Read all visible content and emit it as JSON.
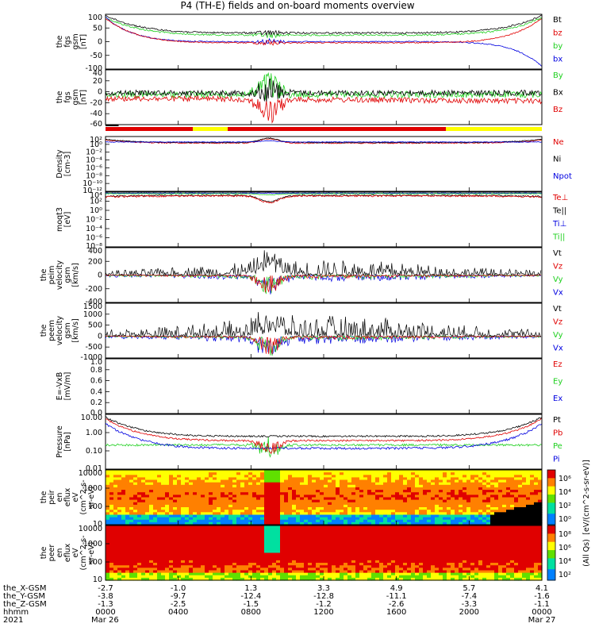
{
  "title": "P4 (TH-E) fields and on-board moments overview",
  "colors": {
    "black": "#000000",
    "red": "#e00000",
    "green": "#20d020",
    "blue": "#0000e0",
    "yellow": "#ffff00"
  },
  "chart_data": [
    {
      "type": "line",
      "ylabel_lines": [
        "the",
        "fgs",
        "gsm",
        "[nT]"
      ],
      "ylim": [
        -100,
        100
      ],
      "ticks": [
        "100",
        "50",
        "0",
        "-50",
        "-100"
      ],
      "series": [
        {
          "name": "Bt",
          "color": "black"
        },
        {
          "name": "bz",
          "color": "red"
        },
        {
          "name": "by",
          "color": "green"
        },
        {
          "name": "bx",
          "color": "blue"
        }
      ]
    },
    {
      "type": "line",
      "ylabel_lines": [
        "the",
        "fgs",
        "gsm",
        "[nT]"
      ],
      "ylim": [
        -70,
        40
      ],
      "ticks": [
        "40",
        "20",
        "0",
        "-20",
        "-40",
        "-60"
      ],
      "series": [
        {
          "name": "By",
          "color": "green"
        },
        {
          "name": "Bx",
          "color": "black"
        },
        {
          "name": "Bz",
          "color": "red"
        }
      ]
    },
    {
      "type": "line",
      "ylabel_lines": [
        "Density",
        "[cm-3]"
      ],
      "scale": "log",
      "ticks": [
        "10²",
        "10⁰",
        "10⁻²",
        "10⁻⁴",
        "10⁻⁶",
        "10⁻⁸",
        "10⁻¹⁰",
        "10⁻¹²"
      ],
      "series": [
        {
          "name": "Ne",
          "color": "red"
        },
        {
          "name": "Ni",
          "color": "black"
        },
        {
          "name": "Npot",
          "color": "blue"
        }
      ]
    },
    {
      "type": "line",
      "ylabel_lines": [
        "moqt3",
        "[eV]"
      ],
      "scale": "log",
      "ticks": [
        "10⁴",
        "10²",
        "10⁰",
        "10⁻²",
        "10⁻⁴",
        "10⁻⁶",
        "10⁻⁸"
      ],
      "series": [
        {
          "name": "Te⊥",
          "color": "red"
        },
        {
          "name": "Te||",
          "color": "black"
        },
        {
          "name": "Ti⊥",
          "color": "blue"
        },
        {
          "name": "Ti||",
          "color": "green"
        }
      ]
    },
    {
      "type": "line",
      "ylabel_lines": [
        "the",
        "peim",
        "velocity",
        "gsm",
        "[km/s]"
      ],
      "ylim": [
        -400,
        400
      ],
      "ticks": [
        "400",
        "200",
        "0",
        "-200",
        "-400"
      ],
      "series": [
        {
          "name": "Vt",
          "color": "black"
        },
        {
          "name": "Vz",
          "color": "red"
        },
        {
          "name": "Vy",
          "color": "green"
        },
        {
          "name": "Vx",
          "color": "blue"
        }
      ]
    },
    {
      "type": "line",
      "ylabel_lines": [
        "the",
        "peem",
        "velocity",
        "gsm",
        "[km/s]"
      ],
      "ylim": [
        -1000,
        1500
      ],
      "ticks": [
        "1500",
        "1000",
        "500",
        "0",
        "-500",
        "-1000"
      ],
      "series": [
        {
          "name": "Vt",
          "color": "black"
        },
        {
          "name": "Vz",
          "color": "red"
        },
        {
          "name": "Vy",
          "color": "green"
        },
        {
          "name": "Vx",
          "color": "blue"
        }
      ]
    },
    {
      "type": "line",
      "ylabel_lines": [
        "E=-VxB",
        "[mV/m]"
      ],
      "ylim": [
        0,
        1
      ],
      "ticks": [
        "1.0",
        "0.8",
        "0.6",
        "0.4",
        "0.2",
        "0.0"
      ],
      "series": [
        {
          "name": "Ez",
          "color": "red"
        },
        {
          "name": "Ey",
          "color": "green"
        },
        {
          "name": "Ex",
          "color": "blue"
        }
      ]
    },
    {
      "type": "line",
      "ylabel_lines": [
        "Pressure",
        "[nPa]"
      ],
      "scale": "log",
      "ticks": [
        "10.00",
        "1.00",
        "0.10",
        "0.01"
      ],
      "series": [
        {
          "name": "Pt",
          "color": "black"
        },
        {
          "name": "Pb",
          "color": "red"
        },
        {
          "name": "Pe",
          "color": "green"
        },
        {
          "name": "Pi",
          "color": "blue"
        }
      ]
    },
    {
      "type": "heatmap",
      "ylabel_lines": [
        "the",
        "peir",
        "en",
        "eflux",
        "eV",
        "(cm^2-s-",
        "sr-eV)"
      ],
      "ticks": [
        "10000",
        "1000",
        "100",
        "10"
      ],
      "colorbar": {
        "label": "[eV/(cm^2-s-sr-eV)]",
        "ticks": [
          "10⁶",
          "10⁴",
          "10²",
          "10⁰"
        ]
      }
    },
    {
      "type": "heatmap",
      "ylabel_lines": [
        "the",
        "peer",
        "en",
        "eflux",
        "eV",
        "(cm^2-s-",
        "sr-eV)"
      ],
      "ticks": [
        "10000",
        "1000",
        "100",
        "10"
      ],
      "colorbar": {
        "label": "(All Qs)",
        "ticks": [
          "10⁸",
          "10⁶",
          "10⁴",
          "10²"
        ]
      }
    }
  ],
  "xaxis": {
    "row_labels": [
      "the_X-GSM",
      "the_Y-GSM",
      "the_Z-GSM",
      "hhmm",
      "2021"
    ],
    "columns": [
      {
        "vals": [
          "-2.7",
          "-3.8",
          "-1.3",
          "0000",
          "Mar 26"
        ]
      },
      {
        "vals": [
          "-1.0",
          "-9.7",
          "-2.5",
          "0400",
          ""
        ]
      },
      {
        "vals": [
          "1.3",
          "-12.4",
          "-1.5",
          "0800",
          ""
        ]
      },
      {
        "vals": [
          "3.3",
          "-12.8",
          "-1.2",
          "1200",
          ""
        ]
      },
      {
        "vals": [
          "4.9",
          "-11.1",
          "-2.6",
          "1600",
          ""
        ]
      },
      {
        "vals": [
          "5.7",
          "-7.4",
          "-3.3",
          "2000",
          ""
        ]
      },
      {
        "vals": [
          "4.1",
          "-1.6",
          "-1.1",
          "0000",
          "Mar 27"
        ]
      }
    ]
  }
}
